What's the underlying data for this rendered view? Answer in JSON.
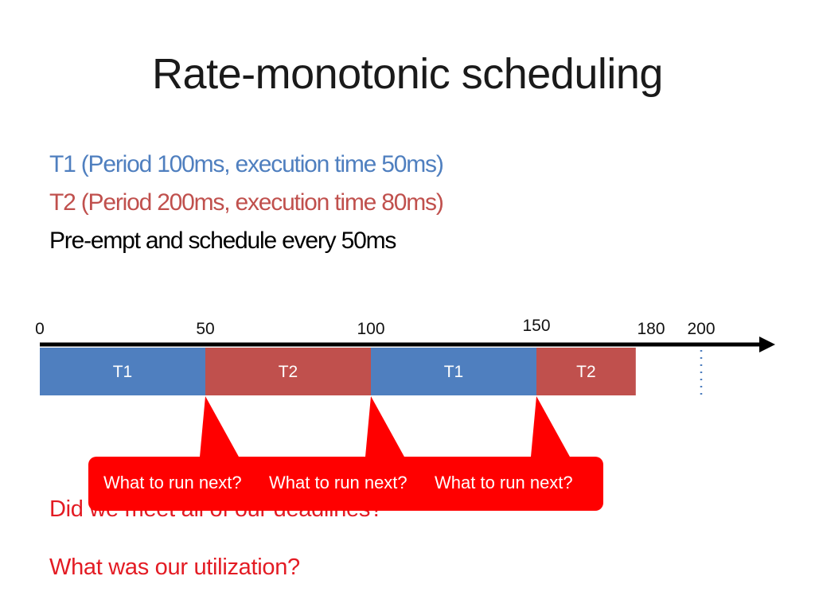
{
  "slide": {
    "title": "Rate-monotonic scheduling",
    "lines": [
      {
        "text": "T1 (Period 100ms, execution time 50ms)",
        "color": "#4f7fbf"
      },
      {
        "text": "T2 (Period 200ms, execution time 80ms)",
        "color": "#c0504d"
      },
      {
        "text": "Pre-empt and schedule every 50ms",
        "color": "#000000"
      }
    ],
    "questions": [
      {
        "text": "Did we meet all of our deadlines?",
        "color": "#e31b23"
      },
      {
        "text": "What was our utilization?",
        "color": "#e31b23"
      }
    ]
  },
  "timeline": {
    "ticks": [
      {
        "label": "0",
        "t": 0
      },
      {
        "label": "50",
        "t": 50
      },
      {
        "label": "100",
        "t": 100
      },
      {
        "label": "150",
        "t": 150
      },
      {
        "label": "180",
        "t": 180
      },
      {
        "label": "200",
        "t": 200
      }
    ],
    "segments": [
      {
        "label": "T1",
        "start": 0,
        "end": 50,
        "color": "#4f7fbf"
      },
      {
        "label": "T2",
        "start": 50,
        "end": 100,
        "color": "#c0504d"
      },
      {
        "label": "T1",
        "start": 100,
        "end": 150,
        "color": "#4f7fbf"
      },
      {
        "label": "T2",
        "start": 150,
        "end": 180,
        "color": "#c0504d"
      }
    ],
    "callouts": [
      {
        "text": "What to run next?",
        "t": 50
      },
      {
        "text": "What to run next?",
        "t": 100
      },
      {
        "text": "What to run next?",
        "t": 150
      }
    ],
    "callout_color": "#ff0000"
  }
}
